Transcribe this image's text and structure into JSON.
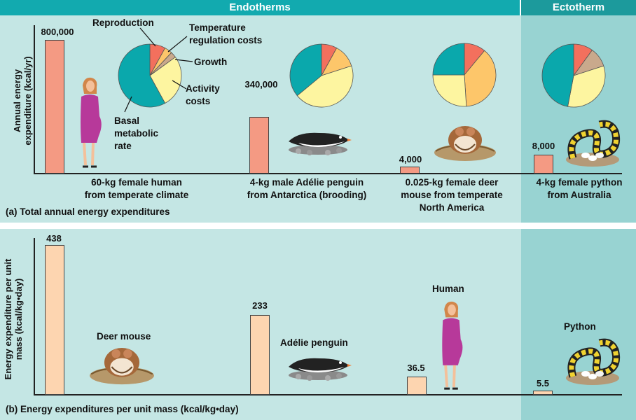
{
  "headers": {
    "endotherms": "Endotherms",
    "ectotherm": "Ectotherm"
  },
  "colors": {
    "header_teal": "#12aaaf",
    "header_dark": "#1c9a9c",
    "panel_bg": "#c4e6e4",
    "ecto_bg": "#98d3d2",
    "bar_a": "#f49a83",
    "bar_b": "#fdd5b0",
    "pie_basal": "#0aa8ac",
    "pie_activity": "#fdf5a0",
    "pie_temp": "#fdc66a",
    "pie_growth": "#c9a98c",
    "pie_repro": "#f3705d"
  },
  "panel_a": {
    "caption": "(a)  Total annual energy expenditures",
    "ylabel_line1": "Annual energy",
    "ylabel_line2": "expenditure (kcal/yr)",
    "legend": {
      "reproduction": "Reproduction",
      "temp_line1": "Temperature",
      "temp_line2": "regulation costs",
      "growth": "Growth",
      "activity_line1": "Activity",
      "activity_line2": "costs",
      "basal_line1": "Basal",
      "basal_line2": "metabolic",
      "basal_line3": "rate"
    },
    "animals": [
      {
        "value_label": "800,000",
        "name_line1": "60-kg female human",
        "name_line2": "from temperate climate",
        "name_line3": ""
      },
      {
        "value_label": "340,000",
        "name_line1": "4-kg male Adélie penguin",
        "name_line2": "from Antarctica (brooding)",
        "name_line3": ""
      },
      {
        "value_label": "4,000",
        "name_line1": "0.025-kg female deer",
        "name_line2": "mouse from temperate",
        "name_line3": "North America"
      },
      {
        "value_label": "8,000",
        "name_line1": "4-kg female python",
        "name_line2": "from Australia",
        "name_line3": ""
      }
    ]
  },
  "panel_b": {
    "caption": "(b)  Energy expenditures per unit mass (kcal/kg•day)",
    "ylabel_line1": "Energy expenditure per unit",
    "ylabel_line2": "mass (kcal/kg•day)",
    "animal_labels": {
      "deer_mouse": "Deer mouse",
      "penguin": "Adélie penguin",
      "human": "Human",
      "python": "Python"
    }
  },
  "chart_data": [
    {
      "type": "bar",
      "categories": [
        "60-kg female human from temperate climate",
        "4-kg male Adélie penguin from Antarctica (brooding)",
        "0.025-kg female deer mouse from temperate North America",
        "4-kg female python from Australia"
      ],
      "values": [
        800000,
        340000,
        4000,
        8000
      ],
      "ylabel": "Annual energy expenditure (kcal/yr)",
      "title": "Total annual energy expenditures"
    },
    {
      "type": "pie",
      "slices": [
        {
          "animal": "human",
          "parts": {
            "Basal metabolic rate": 0.58,
            "Activity costs": 0.27,
            "Growth": 0.03,
            "Temperature regulation costs": 0.04,
            "Reproduction": 0.08
          }
        },
        {
          "animal": "penguin",
          "parts": {
            "Basal metabolic rate": 0.36,
            "Activity costs": 0.44,
            "Temperature regulation costs": 0.12,
            "Reproduction": 0.08
          }
        },
        {
          "animal": "deer mouse",
          "parts": {
            "Basal metabolic rate": 0.25,
            "Activity costs": 0.26,
            "Temperature regulation costs": 0.38,
            "Reproduction": 0.11
          }
        },
        {
          "animal": "python",
          "parts": {
            "Basal metabolic rate": 0.47,
            "Activity costs": 0.33,
            "Growth": 0.1,
            "Reproduction": 0.1
          }
        }
      ]
    },
    {
      "type": "bar",
      "categories": [
        "Deer mouse",
        "Adélie penguin",
        "Human",
        "Python"
      ],
      "values": [
        438,
        233,
        36.5,
        5.5
      ],
      "value_labels": [
        "438",
        "233",
        "36.5",
        "5.5"
      ],
      "ylabel": "Energy expenditure per unit mass (kcal/kg•day)",
      "title": "Energy expenditures per unit mass (kcal/kg•day)"
    }
  ]
}
